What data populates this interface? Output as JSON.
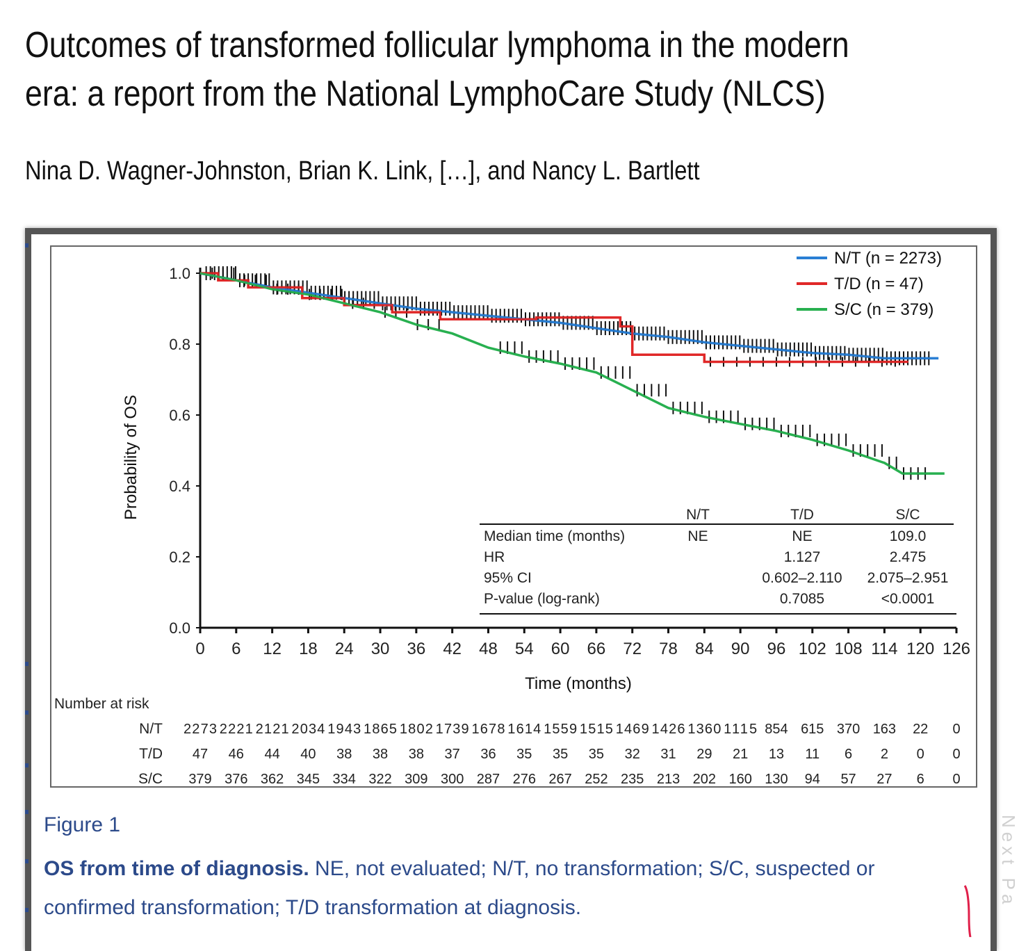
{
  "paper": {
    "title": "Outcomes of transformed follicular lymphoma in the modern era: a report from the National LymphoCare Study (NLCS)",
    "authors": "Nina D. Wagner-Johnston, Brian K. Link, […], and Nancy L. Bartlett"
  },
  "figure": {
    "label": "Figure 1",
    "caption_bold": "OS from time of diagnosis.",
    "caption_rest": " NE, not evaluated; N/T, no transformation; S/C, suspected or confirmed transformation; T/D transformation at diagnosis.",
    "side_text": "Next Pa"
  },
  "chart_data": {
    "type": "line",
    "title": "",
    "xlabel": "Time (months)",
    "ylabel": "Probability of OS",
    "xlim": [
      0,
      126
    ],
    "ylim": [
      0,
      1.0
    ],
    "xticks": [
      0,
      6,
      12,
      18,
      24,
      30,
      36,
      42,
      48,
      54,
      60,
      66,
      72,
      78,
      84,
      90,
      96,
      102,
      108,
      114,
      120,
      126
    ],
    "yticks": [
      "0.0",
      "0.2",
      "0.4",
      "0.6",
      "0.8",
      "1.0"
    ],
    "legend": [
      {
        "label": "N/T (n = 2273)",
        "color": "#2a7fd4"
      },
      {
        "label": "T/D (n = 47)",
        "color": "#e02828"
      },
      {
        "label": "S/C (n = 379)",
        "color": "#28b050"
      }
    ],
    "series": [
      {
        "name": "N/T",
        "color": "#2a7fd4",
        "points": [
          [
            0,
            1.0
          ],
          [
            6,
            0.98
          ],
          [
            12,
            0.96
          ],
          [
            18,
            0.945
          ],
          [
            24,
            0.93
          ],
          [
            30,
            0.915
          ],
          [
            36,
            0.9
          ],
          [
            42,
            0.89
          ],
          [
            48,
            0.88
          ],
          [
            54,
            0.87
          ],
          [
            60,
            0.86
          ],
          [
            66,
            0.845
          ],
          [
            72,
            0.83
          ],
          [
            78,
            0.82
          ],
          [
            84,
            0.805
          ],
          [
            90,
            0.795
          ],
          [
            96,
            0.785
          ],
          [
            102,
            0.775
          ],
          [
            108,
            0.77
          ],
          [
            114,
            0.76
          ],
          [
            120,
            0.76
          ],
          [
            123,
            0.76
          ]
        ]
      },
      {
        "name": "T/D",
        "color": "#e02828",
        "points": [
          [
            0,
            1.0
          ],
          [
            3,
            1.0
          ],
          [
            3,
            0.98
          ],
          [
            8,
            0.98
          ],
          [
            8,
            0.96
          ],
          [
            17,
            0.96
          ],
          [
            17,
            0.93
          ],
          [
            24,
            0.93
          ],
          [
            24,
            0.91
          ],
          [
            32,
            0.91
          ],
          [
            32,
            0.89
          ],
          [
            40,
            0.89
          ],
          [
            40,
            0.87
          ],
          [
            56,
            0.87
          ],
          [
            56,
            0.875
          ],
          [
            70,
            0.875
          ],
          [
            70,
            0.85
          ],
          [
            72,
            0.85
          ],
          [
            72,
            0.77
          ],
          [
            84,
            0.77
          ],
          [
            84,
            0.75
          ],
          [
            118,
            0.75
          ]
        ]
      },
      {
        "name": "S/C",
        "color": "#28b050",
        "points": [
          [
            0,
            1.0
          ],
          [
            6,
            0.98
          ],
          [
            12,
            0.955
          ],
          [
            18,
            0.94
          ],
          [
            24,
            0.915
          ],
          [
            30,
            0.89
          ],
          [
            36,
            0.855
          ],
          [
            42,
            0.83
          ],
          [
            48,
            0.79
          ],
          [
            54,
            0.765
          ],
          [
            60,
            0.745
          ],
          [
            66,
            0.72
          ],
          [
            72,
            0.67
          ],
          [
            78,
            0.62
          ],
          [
            84,
            0.595
          ],
          [
            90,
            0.575
          ],
          [
            96,
            0.555
          ],
          [
            102,
            0.53
          ],
          [
            108,
            0.5
          ],
          [
            114,
            0.465
          ],
          [
            117,
            0.435
          ],
          [
            124,
            0.435
          ]
        ]
      }
    ],
    "stats_table": {
      "headers": [
        "",
        "N/T",
        "T/D",
        "S/C"
      ],
      "rows": [
        [
          "Median time (months)",
          "NE",
          "NE",
          "109.0"
        ],
        [
          "HR",
          "",
          "1.127",
          "2.475"
        ],
        [
          "95% CI",
          "",
          "0.602–2.110",
          "2.075–2.951"
        ],
        [
          "P-value  (log-rank)",
          "",
          "0.7085",
          "<0.0001"
        ]
      ]
    },
    "risk_table": {
      "title": "Number at risk",
      "rows": [
        {
          "label": "N/T",
          "values": [
            "2273",
            "2221",
            "2121",
            "2034",
            "1943",
            "1865",
            "1802",
            "1739",
            "1678",
            "1614",
            "1559",
            "1515",
            "1469",
            "1426",
            "1360",
            "1115",
            "854",
            "615",
            "370",
            "163",
            "22",
            "0"
          ]
        },
        {
          "label": "T/D",
          "values": [
            "47",
            "46",
            "44",
            "40",
            "38",
            "38",
            "38",
            "37",
            "36",
            "35",
            "35",
            "35",
            "32",
            "31",
            "29",
            "21",
            "13",
            "11",
            "6",
            "2",
            "0",
            "0"
          ]
        },
        {
          "label": "S/C",
          "values": [
            "379",
            "376",
            "362",
            "345",
            "334",
            "322",
            "309",
            "300",
            "287",
            "276",
            "267",
            "252",
            "235",
            "213",
            "202",
            "160",
            "130",
            "94",
            "57",
            "27",
            "6",
            "0"
          ]
        }
      ]
    }
  }
}
